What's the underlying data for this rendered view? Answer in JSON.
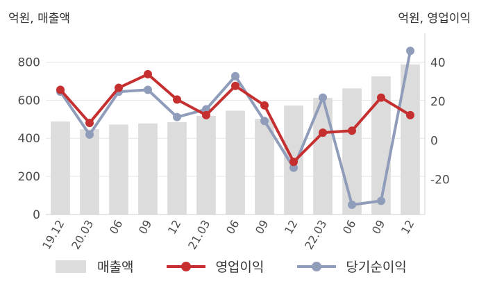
{
  "axis_titles": {
    "left": "억원, 매출액",
    "right": "억원, 영업이익"
  },
  "colors": {
    "bar": "#dcdcdc",
    "op_profit": "#c62f2f",
    "net_profit": "#8f9dbb",
    "grid": "#e6e6e6"
  },
  "chart_data": {
    "type": "bar+line",
    "categories": [
      "19.12",
      "20.03",
      "06",
      "09",
      "12",
      "21.03",
      "06",
      "09",
      "12",
      "22.03",
      "06",
      "09",
      "12"
    ],
    "y_left": {
      "label": "억원, 매출액",
      "range": [
        0,
        900
      ],
      "ticks": [
        0,
        200,
        400,
        600,
        800
      ]
    },
    "y_right": {
      "label": "억원, 영업이익",
      "range": [
        -38,
        50
      ],
      "ticks": [
        -20,
        0,
        20,
        40
      ]
    },
    "grid": true,
    "legend_position": "bottom",
    "series": [
      {
        "name": "매출액",
        "type": "bar",
        "axis": "left",
        "values": [
          488,
          448,
          472,
          478,
          485,
          518,
          545,
          502,
          572,
          612,
          662,
          725,
          788
        ]
      },
      {
        "name": "영업이익",
        "type": "line",
        "axis": "right",
        "values": [
          26,
          9,
          27,
          34,
          21,
          13,
          28,
          18,
          -11,
          4,
          5,
          22,
          13
        ]
      },
      {
        "name": "당기순이익",
        "type": "line",
        "axis": "right",
        "values": [
          25,
          3,
          25,
          26,
          12,
          16,
          33,
          10,
          -14,
          22,
          -33,
          -31,
          46
        ]
      }
    ]
  }
}
